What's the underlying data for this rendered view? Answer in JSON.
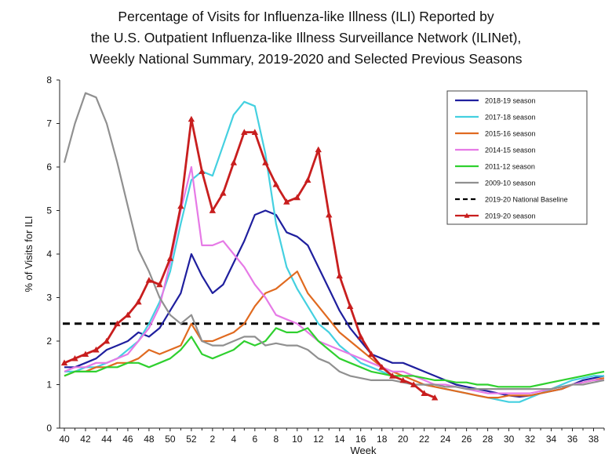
{
  "chart_data": {
    "type": "line",
    "title": [
      "Percentage of Visits for Influenza-like Illness (ILI) Reported by",
      "the U.S. Outpatient Influenza-like Illness Surveillance Network (ILINet),",
      "Weekly National Summary, 2019-2020 and Selected Previous Seasons"
    ],
    "xlabel": "Week",
    "ylabel": "% of Visits for ILI",
    "ylim": [
      0,
      8
    ],
    "yticks": [
      "0",
      "1",
      "2",
      "3",
      "4",
      "5",
      "6",
      "7",
      "8"
    ],
    "weeks": [
      40,
      41,
      42,
      43,
      44,
      45,
      46,
      47,
      48,
      49,
      50,
      51,
      52,
      1,
      2,
      3,
      4,
      5,
      6,
      7,
      8,
      9,
      10,
      11,
      12,
      13,
      14,
      15,
      16,
      17,
      18,
      19,
      20,
      21,
      22,
      23,
      24,
      25,
      26,
      27,
      28,
      29,
      30,
      31,
      32,
      33,
      34,
      35,
      36,
      37,
      38,
      39
    ],
    "xtick_labels": [
      "40",
      "42",
      "44",
      "46",
      "48",
      "50",
      "52",
      "2",
      "4",
      "6",
      "8",
      "10",
      "12",
      "14",
      "16",
      "18",
      "20",
      "22",
      "24",
      "26",
      "28",
      "30",
      "32",
      "34",
      "36",
      "38"
    ],
    "baseline": {
      "name": "2019-20 National Baseline",
      "value": 2.4,
      "color": "#000000"
    },
    "series": [
      {
        "name": "2018-19 season",
        "color": "#1f1f9e",
        "values": [
          1.4,
          1.4,
          1.5,
          1.6,
          1.8,
          1.9,
          2.0,
          2.2,
          2.1,
          2.3,
          2.7,
          3.1,
          4.0,
          3.5,
          3.1,
          3.3,
          3.8,
          4.3,
          4.9,
          5.0,
          4.9,
          4.5,
          4.4,
          4.2,
          3.7,
          3.2,
          2.7,
          2.3,
          2.0,
          1.7,
          1.6,
          1.5,
          1.5,
          1.4,
          1.3,
          1.2,
          1.1,
          1.0,
          0.95,
          0.9,
          0.85,
          0.8,
          0.75,
          0.72,
          0.75,
          0.8,
          0.85,
          0.9,
          1.0,
          1.1,
          1.15,
          1.2
        ]
      },
      {
        "name": "2017-18 season",
        "color": "#44d0e0",
        "values": [
          1.3,
          1.3,
          1.4,
          1.4,
          1.5,
          1.6,
          1.8,
          2.0,
          2.4,
          2.9,
          3.6,
          4.7,
          5.7,
          5.9,
          5.8,
          6.5,
          7.2,
          7.5,
          7.4,
          6.3,
          4.7,
          3.7,
          3.2,
          2.8,
          2.4,
          2.2,
          1.9,
          1.7,
          1.5,
          1.4,
          1.3,
          1.2,
          1.1,
          1.0,
          1.0,
          0.95,
          0.9,
          0.85,
          0.8,
          0.75,
          0.7,
          0.65,
          0.6,
          0.6,
          0.7,
          0.8,
          0.9,
          1.0,
          1.1,
          1.15,
          1.2,
          1.2
        ]
      },
      {
        "name": "2015-16 season",
        "color": "#e06a20",
        "values": [
          1.2,
          1.3,
          1.3,
          1.4,
          1.4,
          1.5,
          1.5,
          1.6,
          1.8,
          1.7,
          1.8,
          1.9,
          2.4,
          2.0,
          2.0,
          2.1,
          2.2,
          2.4,
          2.8,
          3.1,
          3.2,
          3.4,
          3.6,
          3.1,
          2.8,
          2.5,
          2.2,
          2.0,
          1.8,
          1.6,
          1.4,
          1.3,
          1.2,
          1.1,
          1.0,
          0.95,
          0.9,
          0.85,
          0.8,
          0.75,
          0.7,
          0.7,
          0.75,
          0.75,
          0.75,
          0.8,
          0.85,
          0.9,
          1.0,
          1.05,
          1.1,
          1.15
        ]
      },
      {
        "name": "2014-15 season",
        "color": "#e67ae6",
        "values": [
          1.3,
          1.4,
          1.4,
          1.5,
          1.5,
          1.6,
          1.7,
          2.0,
          2.3,
          2.8,
          3.8,
          5.0,
          6.0,
          4.2,
          4.2,
          4.3,
          4.0,
          3.7,
          3.3,
          3.0,
          2.6,
          2.5,
          2.4,
          2.2,
          2.0,
          1.9,
          1.8,
          1.7,
          1.6,
          1.5,
          1.4,
          1.3,
          1.3,
          1.2,
          1.1,
          1.0,
          1.0,
          0.95,
          0.9,
          0.85,
          0.8,
          0.8,
          0.8,
          0.8,
          0.8,
          0.85,
          0.9,
          0.95,
          1.0,
          1.05,
          1.1,
          1.1
        ]
      },
      {
        "name": "2011-12 season",
        "color": "#2fd02f",
        "values": [
          1.2,
          1.3,
          1.3,
          1.3,
          1.4,
          1.4,
          1.5,
          1.5,
          1.4,
          1.5,
          1.6,
          1.8,
          2.1,
          1.7,
          1.6,
          1.7,
          1.8,
          2.0,
          1.9,
          2.0,
          2.3,
          2.2,
          2.2,
          2.3,
          2.0,
          1.8,
          1.6,
          1.5,
          1.4,
          1.3,
          1.25,
          1.2,
          1.2,
          1.2,
          1.15,
          1.1,
          1.1,
          1.05,
          1.05,
          1.0,
          1.0,
          0.95,
          0.95,
          0.95,
          0.95,
          1.0,
          1.05,
          1.1,
          1.15,
          1.2,
          1.25,
          1.3
        ]
      },
      {
        "name": "2009-10 season",
        "color": "#909090",
        "values": [
          6.1,
          7.0,
          7.7,
          7.6,
          7.0,
          6.1,
          5.1,
          4.1,
          3.6,
          3.0,
          2.6,
          2.4,
          2.6,
          2.0,
          1.9,
          1.9,
          2.0,
          2.1,
          2.1,
          1.9,
          1.95,
          1.9,
          1.9,
          1.8,
          1.6,
          1.5,
          1.3,
          1.2,
          1.15,
          1.1,
          1.1,
          1.1,
          1.05,
          1.0,
          1.0,
          1.0,
          0.95,
          0.95,
          0.9,
          0.9,
          0.9,
          0.9,
          0.9,
          0.9,
          0.9,
          0.9,
          0.9,
          0.95,
          1.0,
          1.0,
          1.05,
          1.1
        ]
      },
      {
        "name": "2019-20 season",
        "color": "#c81e1e",
        "marker": "triangle",
        "values": [
          1.5,
          1.6,
          1.7,
          1.8,
          2.0,
          2.4,
          2.6,
          2.9,
          3.4,
          3.3,
          3.9,
          5.1,
          7.1,
          5.9,
          5.0,
          5.4,
          6.1,
          6.8,
          6.8,
          6.1,
          5.6,
          5.2,
          5.3,
          5.7,
          6.4,
          4.9,
          3.5,
          2.8,
          2.1,
          1.7,
          1.4,
          1.2,
          1.1,
          1.0,
          0.8,
          0.7
        ]
      }
    ]
  }
}
